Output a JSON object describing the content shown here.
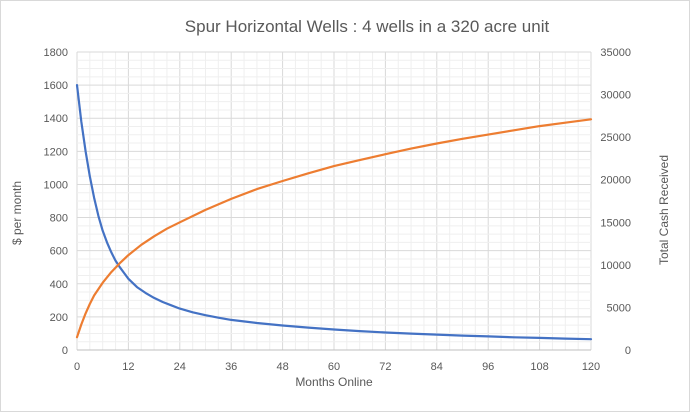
{
  "chart_data": {
    "type": "line",
    "title": "Spur Horizontal Wells : 4 wells in a 320 acre unit",
    "xlabel": "Months Online",
    "ylabel": "$ per month",
    "y2label": "Total Cash Received",
    "xlim": [
      0,
      120
    ],
    "ylim": [
      0,
      1800
    ],
    "y2lim": [
      0,
      35000
    ],
    "xticks": [
      0,
      12,
      24,
      36,
      48,
      60,
      72,
      84,
      96,
      108,
      120
    ],
    "yticks": [
      0,
      200,
      400,
      600,
      800,
      1000,
      1200,
      1400,
      1600,
      1800
    ],
    "y2ticks": [
      0,
      5000,
      10000,
      15000,
      20000,
      25000,
      30000,
      35000
    ],
    "grid": true,
    "colors": {
      "monthly": "#4472c4",
      "cumulative": "#ed7d31"
    },
    "series": [
      {
        "axis": "left",
        "color": "#4472c4",
        "x": [
          0,
          1,
          2,
          3,
          4,
          5,
          6,
          7,
          8,
          9,
          10,
          11,
          12,
          14,
          16,
          18,
          20,
          22,
          24,
          27,
          30,
          33,
          36,
          42,
          48,
          54,
          60,
          66,
          72,
          78,
          84,
          90,
          96,
          102,
          108,
          114,
          120
        ],
        "values": [
          1600,
          1380,
          1200,
          1050,
          920,
          810,
          720,
          650,
          590,
          540,
          500,
          465,
          430,
          380,
          345,
          315,
          290,
          270,
          250,
          228,
          210,
          195,
          182,
          163,
          148,
          135,
          124,
          114,
          106,
          99,
          93,
          87,
          82,
          77,
          73,
          69,
          65
        ]
      },
      {
        "axis": "right",
        "color": "#ed7d31",
        "x": [
          0,
          1,
          2,
          3,
          4,
          6,
          8,
          10,
          12,
          15,
          18,
          21,
          24,
          30,
          36,
          42,
          48,
          54,
          60,
          66,
          72,
          78,
          84,
          90,
          96,
          102,
          108,
          114,
          120
        ],
        "values": [
          1500,
          3000,
          4300,
          5400,
          6400,
          7900,
          9150,
          10200,
          11150,
          12350,
          13350,
          14250,
          15000,
          16450,
          17750,
          18900,
          19850,
          20750,
          21600,
          22300,
          23000,
          23650,
          24250,
          24800,
          25300,
          25800,
          26300,
          26700,
          27100
        ]
      }
    ]
  }
}
